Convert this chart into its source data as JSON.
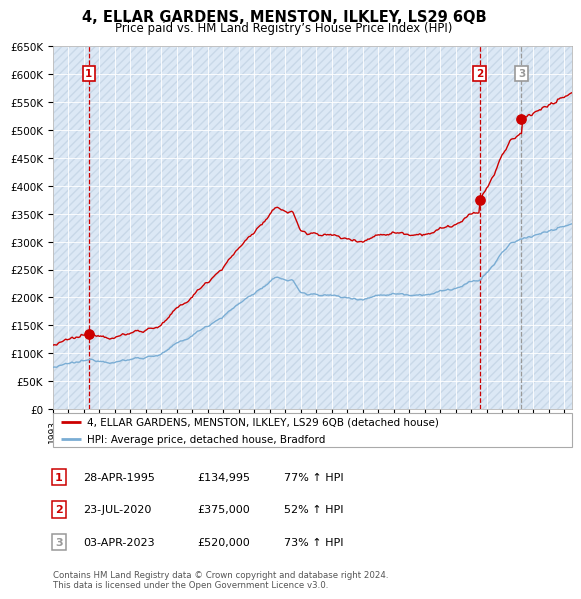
{
  "title": "4, ELLAR GARDENS, MENSTON, ILKLEY, LS29 6QB",
  "subtitle": "Price paid vs. HM Land Registry’s House Price Index (HPI)",
  "ylim": [
    0,
    650000
  ],
  "yticks": [
    0,
    50000,
    100000,
    150000,
    200000,
    250000,
    300000,
    350000,
    400000,
    450000,
    500000,
    550000,
    600000,
    650000
  ],
  "ytick_labels": [
    "£0",
    "£50K",
    "£100K",
    "£150K",
    "£200K",
    "£250K",
    "£300K",
    "£350K",
    "£400K",
    "£450K",
    "£500K",
    "£550K",
    "£600K",
    "£650K"
  ],
  "xlim_start": 1993.0,
  "xlim_end": 2026.5,
  "background_color": "#dce8f5",
  "red_line_color": "#cc0000",
  "blue_line_color": "#7aadd4",
  "sale1_date": 1995.32,
  "sale1_price": 134995,
  "sale2_date": 2020.55,
  "sale2_price": 375000,
  "sale3_date": 2023.25,
  "sale3_price": 520000,
  "legend_label_red": "4, ELLAR GARDENS, MENSTON, ILKLEY, LS29 6QB (detached house)",
  "legend_label_blue": "HPI: Average price, detached house, Bradford",
  "table_entries": [
    {
      "num": "1",
      "date": "28-APR-1995",
      "price": "£134,995",
      "pct": "77% ↑ HPI"
    },
    {
      "num": "2",
      "date": "23-JUL-2020",
      "price": "£375,000",
      "pct": "52% ↑ HPI"
    },
    {
      "num": "3",
      "date": "03-APR-2023",
      "price": "£520,000",
      "pct": "73% ↑ HPI"
    }
  ],
  "footnote": "Contains HM Land Registry data © Crown copyright and database right 2024.\nThis data is licensed under the Open Government Licence v3.0."
}
